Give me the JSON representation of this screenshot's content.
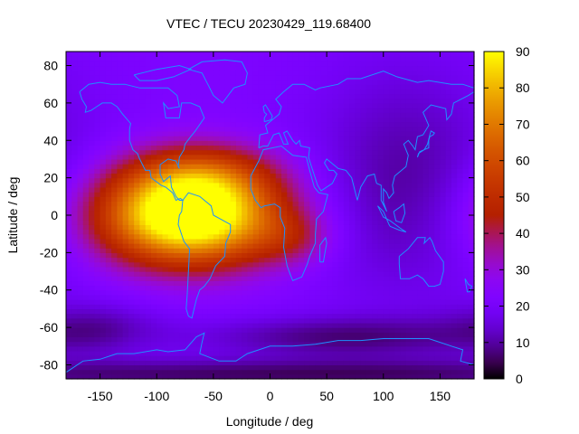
{
  "chart_data": {
    "type": "heatmap",
    "title": "VTEC / TECU 20230429_119.68400",
    "xlabel": "Longitude / deg",
    "ylabel": "Latitude / deg",
    "xlim": [
      -180,
      180
    ],
    "ylim": [
      -87.5,
      87.5
    ],
    "x_ticks": [
      -150,
      -100,
      -50,
      0,
      50,
      100,
      150
    ],
    "y_ticks": [
      -80,
      -60,
      -40,
      -20,
      0,
      20,
      40,
      60,
      80
    ],
    "colorbar": {
      "range": [
        0,
        90
      ],
      "ticks": [
        0,
        10,
        20,
        30,
        40,
        50,
        60,
        70,
        80,
        90
      ],
      "palette": "black-purple-red-orange-yellow"
    },
    "grid": false,
    "grid_resolution_deg": {
      "lon": 5,
      "lat": 2.5
    },
    "overlay": "coastlines",
    "overlay_color": "#1e90ff",
    "field_features": [
      {
        "kind": "background",
        "value": 22
      },
      {
        "kind": "peak",
        "lon": -72,
        "lat": 0,
        "value": 84,
        "sigma_lon": 55,
        "sigma_lat": 18
      },
      {
        "kind": "peak",
        "lon": -60,
        "lat": 22,
        "value": 20,
        "sigma_lon": 45,
        "sigma_lat": 12
      },
      {
        "kind": "peak",
        "lon": 20,
        "lat": -12,
        "value": 12,
        "sigma_lon": 25,
        "sigma_lat": 10
      },
      {
        "kind": "trough",
        "lon": 120,
        "lat": 20,
        "value": -12,
        "sigma_lon": 60,
        "sigma_lat": 45
      },
      {
        "kind": "trough",
        "lon": 60,
        "lat": -65,
        "value": -14,
        "sigma_lon": 90,
        "sigma_lat": 8
      },
      {
        "kind": "trough",
        "lon": -150,
        "lat": -60,
        "value": -10,
        "sigma_lon": 40,
        "sigma_lat": 10
      },
      {
        "kind": "trough",
        "lon": 0,
        "lat": -85,
        "value": -16,
        "sigma_lon": 300,
        "sigma_lat": 6
      }
    ]
  }
}
